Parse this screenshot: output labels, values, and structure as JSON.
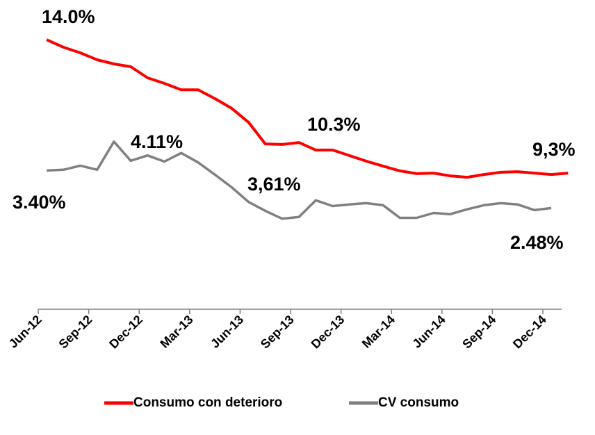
{
  "chart_data": {
    "type": "line",
    "categories": [
      "Jun-12",
      null,
      null,
      "Sep-12",
      null,
      null,
      "Dec-12",
      null,
      null,
      "Mar-13",
      null,
      null,
      "Jun-13",
      null,
      null,
      "Sep-13",
      null,
      null,
      "Dec-13",
      null,
      null,
      "Mar-14",
      null,
      null,
      "Jun-14",
      null,
      null,
      "Sep-14",
      null,
      null,
      "Dec-14",
      null
    ],
    "series": [
      {
        "name": "Consumo con deterioro",
        "color": "#ff0000",
        "values": [
          14.0,
          13.73,
          13.53,
          13.28,
          13.13,
          13.03,
          12.63,
          12.43,
          12.2,
          12.2,
          11.88,
          11.53,
          11.03,
          10.25,
          10.23,
          10.3,
          10.03,
          10.03,
          9.83,
          9.63,
          9.45,
          9.28,
          9.18,
          9.2,
          9.1,
          9.05,
          9.15,
          9.23,
          9.25,
          9.2,
          9.15,
          9.2
        ]
      },
      {
        "name": "CV consumo",
        "color": "#808080",
        "axis": "y2",
        "values": [
          3.4,
          3.42,
          3.52,
          3.42,
          4.11,
          3.64,
          3.77,
          3.62,
          3.83,
          3.6,
          3.3,
          2.99,
          2.63,
          2.41,
          2.22,
          2.26,
          2.67,
          2.53,
          2.57,
          2.6,
          2.55,
          2.24,
          2.24,
          2.36,
          2.33,
          2.45,
          2.55,
          2.6,
          2.57,
          2.43,
          2.48,
          null
        ]
      }
    ],
    "annotations": [
      "14.0%",
      "10.3%",
      "9,3%",
      "3.40%",
      "4.11%",
      "3,61%",
      "2.48%"
    ],
    "ylim": [
      4.3,
      14.43
    ],
    "y2lim": [
      0,
      6.9
    ]
  }
}
